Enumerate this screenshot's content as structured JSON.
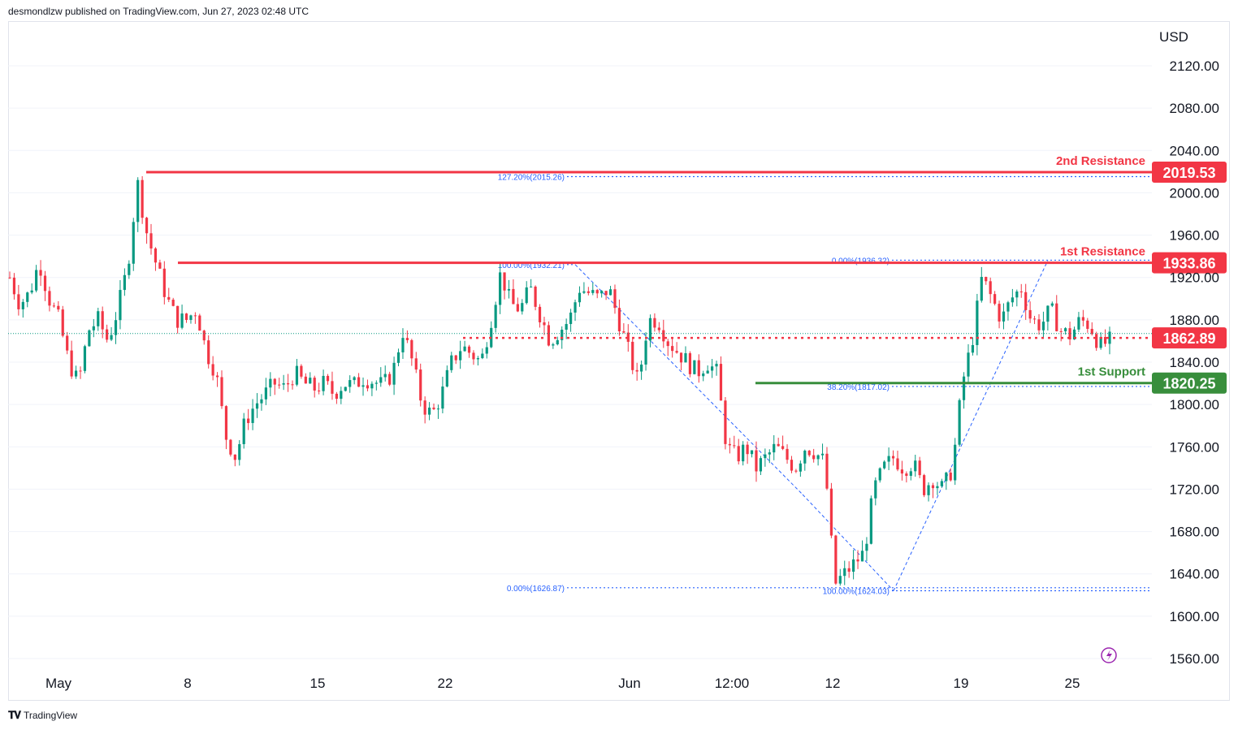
{
  "header": {
    "published_text": "desmondlzw published on TradingView.com, Jun 27, 2023 02:48 UTC"
  },
  "footer": {
    "brand": "TradingView"
  },
  "colors": {
    "up": "#089981",
    "down": "#f23645",
    "resistance": "#f23645",
    "support": "#388e3c",
    "fib": "#2962ff",
    "grid": "#e0e3eb"
  },
  "chart_data": {
    "type": "candlestick",
    "symbol_currency": "USD",
    "y_ticks": [
      "2120.00",
      "2080.00",
      "2040.00",
      "2000.00",
      "1960.00",
      "1920.00",
      "1880.00",
      "1840.00",
      "1800.00",
      "1760.00",
      "1720.00",
      "1680.00",
      "1640.00",
      "1600.00",
      "1560.00"
    ],
    "y_tick_values": [
      2120,
      2080,
      2040,
      2000,
      1960,
      1920,
      1880,
      1840,
      1800,
      1760,
      1720,
      1680,
      1640,
      1600,
      1560
    ],
    "ylim": [
      1544,
      2152
    ],
    "x_ticks": [
      "May",
      "8",
      "15",
      "22",
      "Jun",
      "12:00",
      "12",
      "19",
      "25"
    ],
    "levels": [
      {
        "name": "2nd Resistance",
        "value": 2019.53,
        "label": "2019.53",
        "color": "#f23645",
        "start": "May 5"
      },
      {
        "name": "1st Resistance",
        "value": 1933.86,
        "label": "1933.86",
        "color": "#f23645",
        "start": "May 8"
      },
      {
        "name": "1st Support",
        "value": 1820.25,
        "label": "1820.25",
        "color": "#388e3c",
        "start": "Jun 2"
      }
    ],
    "current_price": {
      "value": 1862.89,
      "label": "1862.89"
    },
    "fib_labels": [
      {
        "text": "127.20%(2015.26)",
        "value": 2015.26
      },
      {
        "text": "100.00%(1932.21)",
        "value": 1932.21
      },
      {
        "text": "0.00%(1626.87)",
        "value": 1626.87
      },
      {
        "text": "0.00%(1936.32)",
        "value": 1936.32
      },
      {
        "text": "38.20%(1817.02)",
        "value": 1817.02
      },
      {
        "text": "100.00%(1624.03)",
        "value": 1624.03
      }
    ],
    "price_path": [
      1920,
      1895,
      1905,
      1935,
      1900,
      1880,
      1840,
      1820,
      1870,
      1880,
      1860,
      1890,
      1930,
      2010,
      1960,
      1930,
      1900,
      1880,
      1880,
      1890,
      1850,
      1830,
      1770,
      1750,
      1785,
      1800,
      1810,
      1820,
      1815,
      1830,
      1820,
      1815,
      1820,
      1810,
      1820,
      1818,
      1825,
      1822,
      1818,
      1830,
      1870,
      1840,
      1800,
      1790,
      1810,
      1840,
      1855,
      1848,
      1840,
      1880,
      1925,
      1895,
      1890,
      1910,
      1885,
      1860,
      1870,
      1880,
      1910,
      1905,
      1900,
      1910,
      1880,
      1850,
      1820,
      1880,
      1880,
      1860,
      1850,
      1840,
      1830,
      1840,
      1830,
      1760,
      1750,
      1760,
      1740,
      1750,
      1760,
      1750,
      1740,
      1760,
      1755,
      1745,
      1630,
      1640,
      1650,
      1660,
      1720,
      1740,
      1750,
      1740,
      1745,
      1720,
      1730,
      1720,
      1740,
      1820,
      1860,
      1920,
      1900,
      1880,
      1900,
      1910,
      1880,
      1875,
      1890,
      1870,
      1865,
      1880,
      1875,
      1855,
      1860
    ]
  }
}
